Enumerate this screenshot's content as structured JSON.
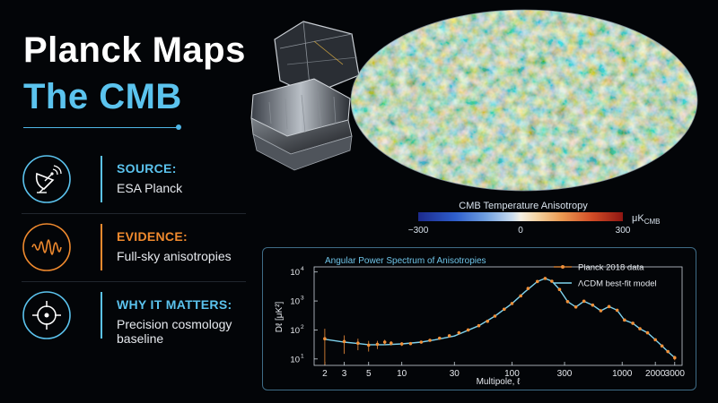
{
  "header": {
    "title_line1": "Planck Maps",
    "title_line2": "The CMB"
  },
  "cards": [
    {
      "icon": "satellite-dish-icon",
      "label": "SOURCE:",
      "value": "ESA Planck",
      "color": "#5bc3ee"
    },
    {
      "icon": "wave-signal-icon",
      "label": "EVIDENCE:",
      "value": "Full-sky anisotropies",
      "color": "#f08a2e"
    },
    {
      "icon": "crosshair-target-icon",
      "label": "WHY IT MATTERS:",
      "value": "Precision cosmology baseline",
      "color": "#5bc3ee"
    }
  ],
  "cmb_map": {
    "colorbar_title": "CMB Temperature Anisotropy",
    "colorbar_ticks": [
      "−300",
      "0",
      "300"
    ],
    "colorbar_unit": "μK",
    "colorbar_unit_sub": "CMB"
  },
  "chart_data": {
    "type": "line",
    "title": "Angular Power Spectrum of Anisotropies",
    "xlabel": "Multipole, ℓ",
    "ylabel": "Dℓ [μK²]",
    "xscale": "log",
    "yscale": "log",
    "xlim": [
      1.6,
      3500
    ],
    "ylim": [
      6,
      15000
    ],
    "xticks": [
      2,
      3,
      5,
      10,
      30,
      100,
      300,
      1000,
      2000,
      3000
    ],
    "yticks": [
      {
        "value": 10,
        "label": "10",
        "exp": "1"
      },
      {
        "value": 100,
        "label": "10",
        "exp": "2"
      },
      {
        "value": 1000,
        "label": "10",
        "exp": "3"
      },
      {
        "value": 10000,
        "label": "10",
        "exp": "4"
      }
    ],
    "legend_position": "top-right",
    "series": [
      {
        "name": "Planck 2018 data",
        "kind": "points",
        "color": "#f0903a",
        "x": [
          2,
          3,
          4,
          5,
          6,
          7,
          8,
          10,
          12,
          15,
          18,
          22,
          27,
          33,
          40,
          50,
          60,
          70,
          85,
          100,
          120,
          140,
          170,
          200,
          230,
          270,
          320,
          380,
          450,
          540,
          640,
          760,
          900,
          1050,
          1250,
          1450,
          1700,
          2000,
          2300,
          2600,
          3000
        ],
        "y": [
          50,
          40,
          35,
          30,
          32,
          38,
          35,
          33,
          34,
          38,
          44,
          52,
          63,
          80,
          100,
          140,
          200,
          300,
          520,
          820,
          1500,
          2700,
          4700,
          6000,
          4800,
          2500,
          950,
          620,
          980,
          720,
          460,
          640,
          480,
          220,
          170,
          110,
          80,
          46,
          28,
          18,
          11
        ],
        "err": [
          60,
          25,
          15,
          12,
          10,
          8,
          6,
          5,
          4,
          4,
          3,
          3,
          3,
          3,
          3,
          3,
          3,
          4,
          5,
          8,
          10,
          15,
          20,
          25,
          20,
          15,
          10,
          8,
          10,
          8,
          6,
          8,
          6,
          4,
          3,
          3,
          2,
          2,
          2,
          2,
          2
        ]
      },
      {
        "name": "ΛCDM best-fit model",
        "kind": "line",
        "color": "#7fd3ee",
        "x": [
          2,
          3,
          4,
          5,
          7,
          10,
          15,
          20,
          30,
          50,
          70,
          100,
          130,
          170,
          200,
          230,
          270,
          320,
          380,
          450,
          540,
          640,
          760,
          900,
          1050,
          1250,
          1450,
          1700,
          2000,
          2300,
          2600,
          3000
        ],
        "y": [
          48,
          38,
          34,
          31,
          31,
          33,
          38,
          46,
          62,
          140,
          300,
          820,
          2000,
          4700,
          6000,
          4800,
          2500,
          950,
          620,
          980,
          720,
          460,
          640,
          480,
          220,
          170,
          110,
          80,
          46,
          28,
          18,
          11
        ]
      }
    ]
  }
}
